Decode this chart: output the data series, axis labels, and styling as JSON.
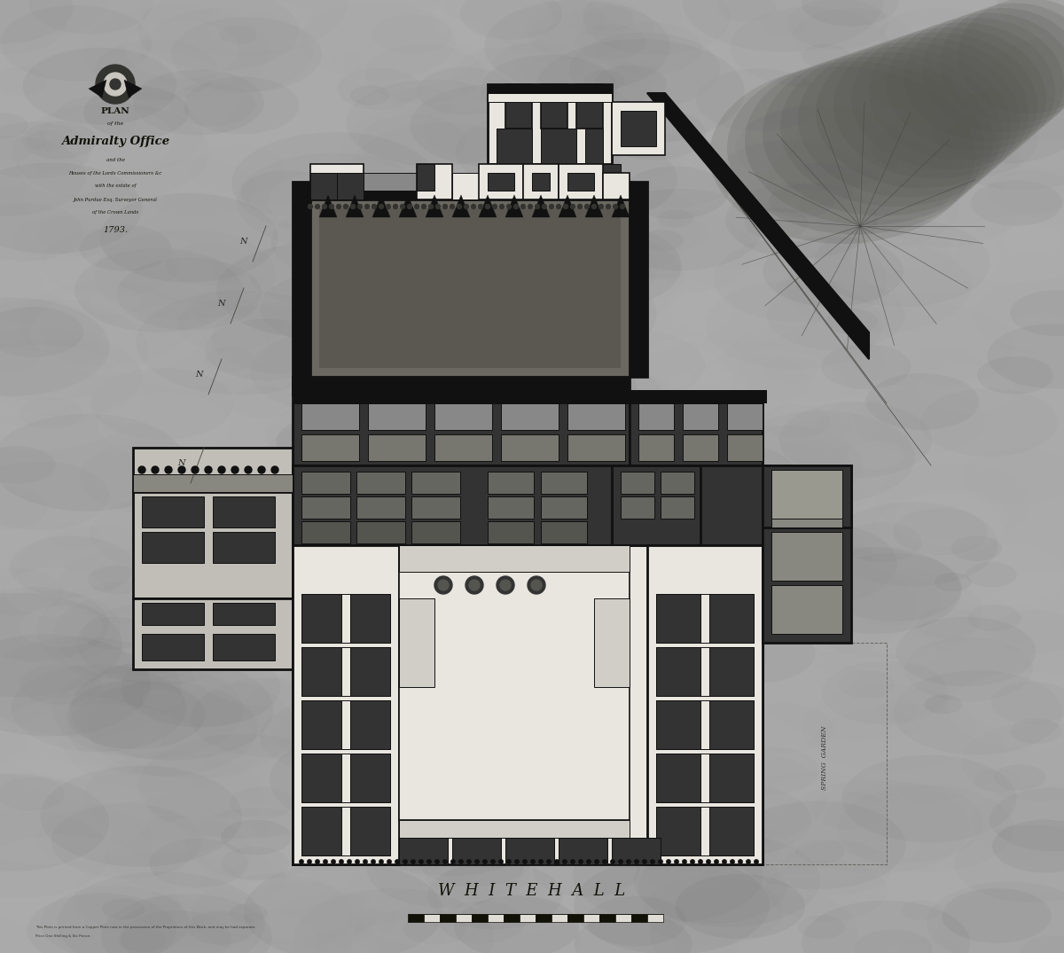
{
  "bg_outer": "#aaaaaa",
  "bg_paper": "#c8c6be",
  "wall_color": "#111111",
  "fill_black": "#111111",
  "fill_dark": "#333333",
  "fill_darkgray": "#555555",
  "fill_gray": "#888888",
  "fill_lightgray": "#aaaaaa",
  "fill_pale": "#c0beb6",
  "fill_white": "#e8e6de",
  "fill_yard": "#6a6860",
  "fill_stable": "#555450",
  "title_main": "PLAN",
  "title_sub": "of the",
  "title_name": "Admiralty Office",
  "title_line3": "and the",
  "title_line4": "Houses of the Lords Commissioners &c",
  "title_line5": "with the estate of",
  "title_line6": "John Purdue Esq. Surveyor General",
  "title_line7": "of the Crown Lands",
  "title_year": "1793.",
  "whitehall": "W  H  I  T  E  H  A  L  L",
  "spring_garden": "SPRING  GARDEN"
}
